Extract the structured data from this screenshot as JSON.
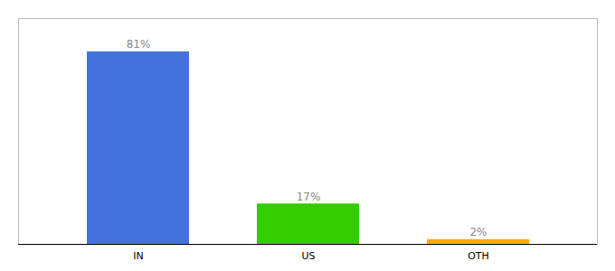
{
  "chart_data": {
    "type": "bar",
    "categories": [
      "IN",
      "US",
      "OTH"
    ],
    "values": [
      81,
      17,
      2
    ],
    "value_labels": [
      "81%",
      "17%",
      "2%"
    ],
    "colors": [
      "#4472db",
      "#33cc00",
      "#ffaa00"
    ],
    "ylim": [
      0,
      95
    ],
    "yticks": [],
    "data_labels": true,
    "tick_labels": "x"
  }
}
